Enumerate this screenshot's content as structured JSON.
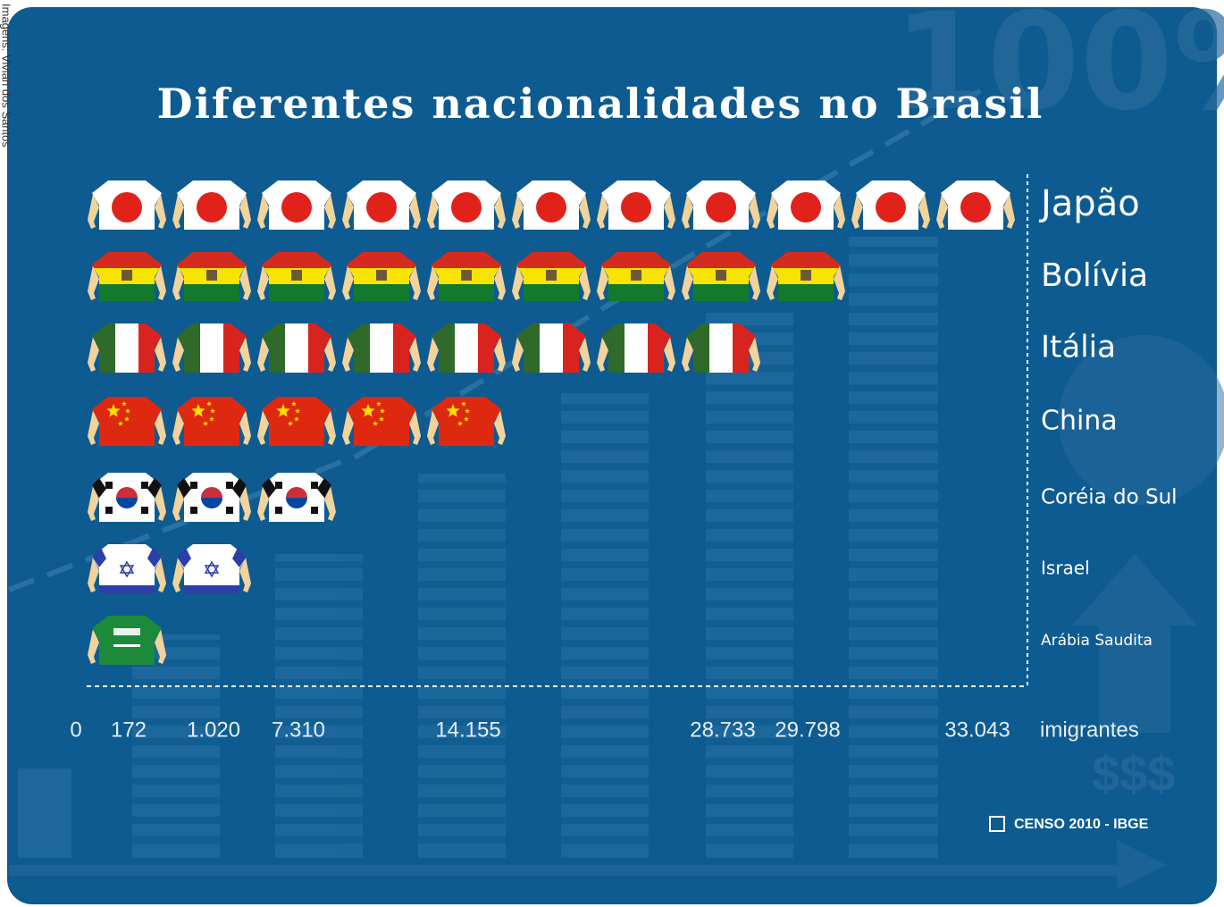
{
  "chart_data": {
    "type": "pictogram",
    "title": "Diferentes nacionalidades no Brasil",
    "categories": [
      "Japão",
      "Bolívia",
      "Itália",
      "China",
      "Coréia do Sul",
      "Israel",
      "Arábia Saudita"
    ],
    "values": [
      33043,
      29798,
      28733,
      14155,
      7310,
      1020,
      172
    ],
    "value_labels": [
      "33.043",
      "29.798",
      "28.733",
      "14.155",
      "7.310",
      "1.020",
      "172"
    ],
    "icons": [
      11,
      9,
      8,
      5,
      3,
      2,
      1
    ],
    "xticks": [
      0
    ],
    "x_label": "imigrantes",
    "source": "CENSO 2010 - IBGE",
    "credit": "Imagens: Vivian dos Santos"
  }
}
